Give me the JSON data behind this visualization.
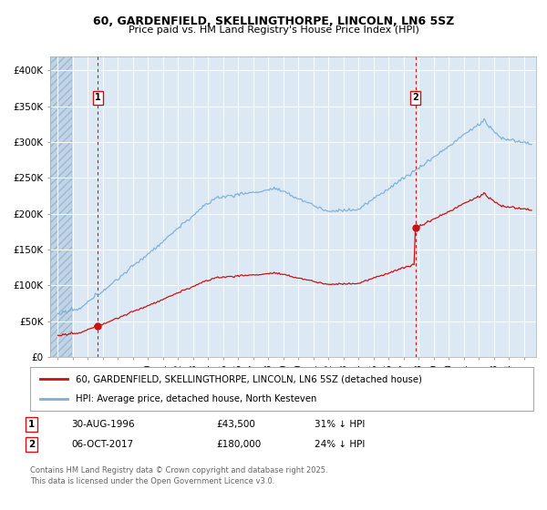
{
  "title_line1": "60, GARDENFIELD, SKELLINGTHORPE, LINCOLN, LN6 5SZ",
  "title_line2": "Price paid vs. HM Land Registry's House Price Index (HPI)",
  "background_color": "#ffffff",
  "plot_bg_color": "#dce9f5",
  "hpi_color": "#7ab0d8",
  "price_color": "#cc1111",
  "vline_color": "#cc1111",
  "annotation1": {
    "label": "1",
    "date": "30-AUG-1996",
    "price": "£43,500",
    "hpi": "31% ↓ HPI",
    "x_year": 1996.66
  },
  "annotation2": {
    "label": "2",
    "date": "06-OCT-2017",
    "price": "£180,000",
    "hpi": "24% ↓ HPI",
    "x_year": 2017.77
  },
  "sale1_price": 43500,
  "sale2_price": 180000,
  "legend_line1": "60, GARDENFIELD, SKELLINGTHORPE, LINCOLN, LN6 5SZ (detached house)",
  "legend_line2": "HPI: Average price, detached house, North Kesteven",
  "footer": "Contains HM Land Registry data © Crown copyright and database right 2025.\nThis data is licensed under the Open Government Licence v3.0.",
  "ylim": [
    0,
    420000
  ],
  "xlim": [
    1993.5,
    2025.8
  ],
  "yticks": [
    0,
    50000,
    100000,
    150000,
    200000,
    250000,
    300000,
    350000,
    400000
  ],
  "ytick_labels": [
    "£0",
    "£50K",
    "£100K",
    "£150K",
    "£200K",
    "£250K",
    "£300K",
    "£350K",
    "£400K"
  ],
  "xticks": [
    1994,
    1995,
    1996,
    1997,
    1998,
    1999,
    2000,
    2001,
    2002,
    2003,
    2004,
    2005,
    2006,
    2007,
    2008,
    2009,
    2010,
    2011,
    2012,
    2013,
    2014,
    2015,
    2016,
    2017,
    2018,
    2019,
    2020,
    2021,
    2022,
    2023,
    2024,
    2025
  ],
  "hatch_end": 1994.92,
  "hatch_color": "#c8d8e8"
}
